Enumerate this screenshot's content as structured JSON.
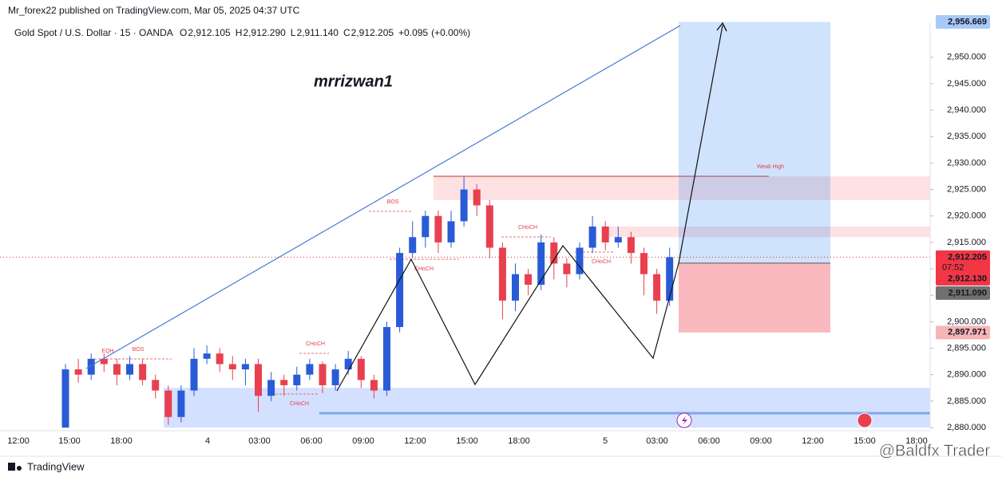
{
  "header": "Mr_forex22 published on TradingView.com, Mar 05, 2025 04:37 UTC",
  "footer": {
    "brand": "TradingView",
    "watermark": "@Baldfx Trader"
  },
  "chart_data": {
    "type": "candlestick",
    "title": "Gold Spot / U.S. Dollar · 15 · OANDA",
    "readout": [
      {
        "name": "O",
        "value": 2912.105,
        "label": "2,912.105"
      },
      {
        "name": "H",
        "value": 2912.29,
        "label": "2,912.290"
      },
      {
        "name": "L",
        "value": 2911.14,
        "label": "2,911.140"
      },
      {
        "name": "C",
        "value": 2912.205,
        "label": "2,912.205"
      }
    ],
    "change": {
      "value": 0.095,
      "label": "+0.095"
    },
    "change_pct": {
      "value": 0,
      "label": "(+0.00%)"
    },
    "watermark": "mrrizwan1",
    "annotations": [
      "EQH",
      "BOS",
      "CHoCH",
      "CHoCH",
      "BOS",
      "CHoCH",
      "CHoCH",
      "CHoCH",
      "Weak High"
    ],
    "x_labels": [
      "12:00",
      "15:00",
      "18:00",
      "4",
      "03:00",
      "06:00",
      "09:00",
      "12:00",
      "15:00",
      "18:00",
      "5",
      "03:00",
      "06:00",
      "09:00",
      "12:00",
      "15:00",
      "18:00"
    ],
    "up_color": "#2a5bd7",
    "down_color": "#e8404f",
    "open": [
      2880,
      2891,
      2890,
      2893,
      2892,
      2890,
      2892,
      2889,
      2887,
      2882,
      2887,
      2893,
      2894,
      2892,
      2891,
      2892,
      2886,
      2889,
      2888,
      2890,
      2892,
      2888,
      2891,
      2893,
      2889,
      2887,
      2899,
      2913,
      2916,
      2920,
      2915,
      2919,
      2925,
      2922,
      2914,
      2904,
      2909,
      2907,
      2915,
      2911,
      2909,
      2914,
      2918,
      2915,
      2916,
      2913,
      2909,
      2904
    ],
    "high": [
      2892,
      2893,
      2894,
      2894,
      2893,
      2893.5,
      2893,
      2890,
      2888,
      2888,
      2895,
      2895.5,
      2895,
      2893.5,
      2893,
      2893,
      2890.5,
      2890,
      2891.5,
      2893,
      2892.5,
      2892,
      2894.5,
      2893.5,
      2890,
      2900,
      2914,
      2919,
      2921,
      2921,
      2921,
      2927.5,
      2926,
      2923,
      2915,
      2911,
      2910,
      2916.5,
      2916,
      2912,
      2915,
      2920,
      2919,
      2918,
      2917,
      2914,
      2910,
      2914
    ],
    "low": [
      2880,
      2888.5,
      2889,
      2890.5,
      2888,
      2889,
      2888,
      2885.5,
      2880.5,
      2881,
      2886,
      2892,
      2890.5,
      2889,
      2888,
      2883,
      2885,
      2886,
      2887,
      2889,
      2886.5,
      2887,
      2890,
      2887.5,
      2885.5,
      2886,
      2898,
      2912,
      2914,
      2913,
      2914,
      2918,
      2920,
      2912,
      2900.5,
      2902,
      2905,
      2906,
      2908,
      2906.5,
      2908,
      2913,
      2913.5,
      2914,
      2911,
      2905,
      2901.5,
      2903
    ],
    "close": [
      2891,
      2890,
      2893,
      2892,
      2890,
      2892,
      2889,
      2887,
      2882,
      2887,
      2893,
      2894,
      2892,
      2891,
      2892,
      2886,
      2889,
      2888,
      2890,
      2892,
      2888,
      2891,
      2893,
      2889,
      2887,
      2899,
      2913,
      2916,
      2920,
      2915,
      2919,
      2925,
      2922,
      2914,
      2904,
      2909,
      2907,
      2915,
      2911,
      2909,
      2914,
      2918,
      2915,
      2916,
      2913,
      2909,
      2904,
      2912.205
    ],
    "ylim": [
      2879.4,
      2956.6
    ],
    "yticks": [
      {
        "value": 2880,
        "label": "2,880.000"
      },
      {
        "value": 2885,
        "label": "2,885.000"
      },
      {
        "value": 2890,
        "label": "2,890.000"
      },
      {
        "value": 2895,
        "label": "2,895.000"
      },
      {
        "value": 2900,
        "label": "2,900.000"
      },
      {
        "value": 2905,
        "label": "2,905.000"
      },
      {
        "value": 2910,
        "label": "2,910.000"
      },
      {
        "value": 2915,
        "label": "2,915.000"
      },
      {
        "value": 2920,
        "label": "2,920.000"
      },
      {
        "value": 2925,
        "label": "2,925.000"
      },
      {
        "value": 2930,
        "label": "2,930.000"
      },
      {
        "value": 2935,
        "label": "2,935.000"
      },
      {
        "value": 2940,
        "label": "2,940.000"
      },
      {
        "value": 2945,
        "label": "2,945.000"
      },
      {
        "value": 2950,
        "label": "2,950.000"
      }
    ],
    "zones": [
      {
        "low": 2923,
        "high": 2927.5,
        "color": "rgba(242,54,69,0.15)"
      },
      {
        "low": 2916,
        "high": 2918,
        "color": "rgba(242,54,69,0.15)"
      },
      {
        "low": 2880,
        "high": 2887.5,
        "color": "rgba(41,98,255,0.2)"
      }
    ],
    "price_labels": [
      {
        "value": 2956.669,
        "label": "2,956.669",
        "color": "#a8c8f8",
        "text_color": "#131722"
      },
      {
        "value": 2912.205,
        "label": "2,912.205",
        "sub": "07:52",
        "color": "#f23645",
        "text_color": "#ffffff"
      },
      {
        "value": 2912.13,
        "label": "2,912.130",
        "color": "#f23645",
        "text_color": "#ffffff"
      },
      {
        "value": 2911.09,
        "label": "2,911.090",
        "color": "#707070",
        "text_color": "#ffffff"
      },
      {
        "value": 2897.971,
        "label": "2,897.971",
        "color": "#f7b5b8",
        "text_color": "#131722"
      }
    ]
  }
}
